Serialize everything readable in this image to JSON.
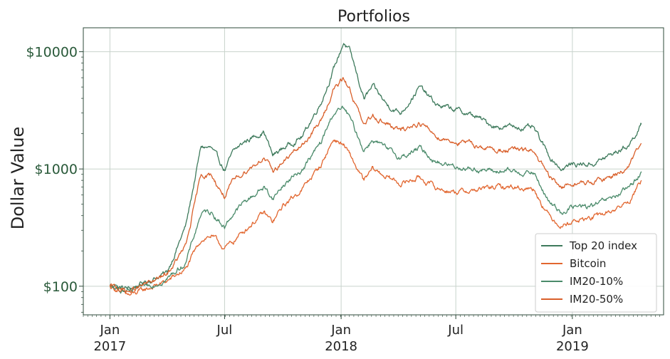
{
  "chart_data": {
    "type": "line",
    "title": "Portfolios",
    "xlabel": "",
    "ylabel": "Dollar Value",
    "yscale": "log",
    "ylim": [
      57,
      16000
    ],
    "xlim": [
      "2016-11-20",
      "2019-05-25"
    ],
    "grid": true,
    "legend_position": "lower-right",
    "yticks": [
      {
        "value": 100,
        "label": "$100"
      },
      {
        "value": 1000,
        "label": "$1000"
      },
      {
        "value": 10000,
        "label": "$10000"
      }
    ],
    "xticks": [
      {
        "date": "2017-01-01",
        "month": "Jan",
        "year": "2017"
      },
      {
        "date": "2017-07-01",
        "month": "Jul",
        "year": ""
      },
      {
        "date": "2018-01-01",
        "month": "Jan",
        "year": "2018"
      },
      {
        "date": "2018-07-01",
        "month": "Jul",
        "year": ""
      },
      {
        "date": "2019-01-01",
        "month": "Jan",
        "year": "2019"
      }
    ],
    "series": [
      {
        "name": "Top 20 index",
        "color": "#3e7a5c",
        "x": [
          "2017-01-01",
          "2017-02-01",
          "2017-03-01",
          "2017-04-01",
          "2017-05-01",
          "2017-05-25",
          "2017-06-10",
          "2017-07-01",
          "2017-07-15",
          "2017-08-01",
          "2017-09-01",
          "2017-09-15",
          "2017-10-01",
          "2017-11-01",
          "2017-12-01",
          "2017-12-20",
          "2018-01-05",
          "2018-01-15",
          "2018-02-06",
          "2018-02-20",
          "2018-03-15",
          "2018-04-05",
          "2018-05-05",
          "2018-06-01",
          "2018-07-01",
          "2018-08-01",
          "2018-09-01",
          "2018-10-01",
          "2018-11-01",
          "2018-11-25",
          "2018-12-15",
          "2019-01-01",
          "2019-02-01",
          "2019-03-01",
          "2019-03-31",
          "2019-04-20"
        ],
        "y": [
          100,
          95,
          110,
          130,
          330,
          1550,
          1500,
          980,
          1400,
          1700,
          2100,
          1300,
          1500,
          1900,
          3800,
          7000,
          12000,
          10000,
          4000,
          5000,
          3500,
          3000,
          5000,
          3500,
          3200,
          2800,
          2300,
          2300,
          2200,
          1300,
          1000,
          1100,
          1100,
          1300,
          1600,
          2400
        ]
      },
      {
        "name": "Bitcoin",
        "color": "#e2662f",
        "x": [
          "2017-01-01",
          "2017-02-01",
          "2017-03-01",
          "2017-04-01",
          "2017-05-01",
          "2017-05-25",
          "2017-06-10",
          "2017-07-01",
          "2017-07-15",
          "2017-08-01",
          "2017-09-01",
          "2017-09-15",
          "2017-10-01",
          "2017-11-01",
          "2017-12-01",
          "2017-12-20",
          "2018-01-05",
          "2018-01-15",
          "2018-02-06",
          "2018-02-20",
          "2018-03-15",
          "2018-04-05",
          "2018-05-05",
          "2018-06-01",
          "2018-07-01",
          "2018-08-01",
          "2018-09-01",
          "2018-10-01",
          "2018-11-01",
          "2018-11-25",
          "2018-12-15",
          "2019-01-01",
          "2019-02-01",
          "2019-03-01",
          "2019-03-31",
          "2019-04-20"
        ],
        "y": [
          100,
          83,
          95,
          110,
          140,
          250,
          270,
          210,
          240,
          300,
          420,
          350,
          480,
          680,
          1100,
          1800,
          1600,
          1300,
          780,
          1000,
          850,
          750,
          850,
          680,
          640,
          660,
          700,
          700,
          680,
          400,
          330,
          360,
          380,
          430,
          520,
          800
        ]
      },
      {
        "name": "IM20-10%",
        "color": "#4a8a6a",
        "x": [
          "2017-01-01",
          "2017-02-01",
          "2017-03-01",
          "2017-04-01",
          "2017-05-01",
          "2017-05-25",
          "2017-06-10",
          "2017-07-01",
          "2017-07-15",
          "2017-08-01",
          "2017-09-01",
          "2017-09-15",
          "2017-10-01",
          "2017-11-01",
          "2017-12-01",
          "2017-12-20",
          "2018-01-05",
          "2018-01-15",
          "2018-02-06",
          "2018-02-20",
          "2018-03-15",
          "2018-04-05",
          "2018-05-05",
          "2018-06-01",
          "2018-07-01",
          "2018-08-01",
          "2018-09-01",
          "2018-10-01",
          "2018-11-01",
          "2018-11-25",
          "2018-12-15",
          "2019-01-01",
          "2019-02-01",
          "2019-03-01",
          "2019-03-31",
          "2019-04-20"
        ],
        "y": [
          100,
          88,
          100,
          115,
          160,
          420,
          430,
          320,
          420,
          520,
          700,
          560,
          720,
          1000,
          1700,
          3000,
          3300,
          2700,
          1450,
          1800,
          1450,
          1250,
          1500,
          1150,
          1050,
          1000,
          950,
          950,
          920,
          520,
          430,
          470,
          480,
          550,
          680,
          950
        ]
      },
      {
        "name": "IM20-50%",
        "color": "#d95f2a",
        "x": [
          "2017-01-01",
          "2017-02-01",
          "2017-03-01",
          "2017-04-01",
          "2017-05-01",
          "2017-05-25",
          "2017-06-10",
          "2017-07-01",
          "2017-07-15",
          "2017-08-01",
          "2017-09-01",
          "2017-09-15",
          "2017-10-01",
          "2017-11-01",
          "2017-12-01",
          "2017-12-20",
          "2018-01-05",
          "2018-01-15",
          "2018-02-06",
          "2018-02-20",
          "2018-03-15",
          "2018-04-05",
          "2018-05-05",
          "2018-06-01",
          "2018-07-01",
          "2018-08-01",
          "2018-09-01",
          "2018-10-01",
          "2018-11-01",
          "2018-11-25",
          "2018-12-15",
          "2019-01-01",
          "2019-02-01",
          "2019-03-01",
          "2019-03-31",
          "2019-04-20"
        ],
        "y": [
          100,
          90,
          105,
          125,
          220,
          900,
          880,
          580,
          780,
          950,
          1250,
          950,
          1150,
          1600,
          2600,
          4800,
          5800,
          4800,
          2300,
          2900,
          2400,
          2100,
          2500,
          1900,
          1700,
          1600,
          1450,
          1450,
          1420,
          850,
          700,
          750,
          760,
          850,
          1050,
          1650
        ]
      }
    ]
  }
}
